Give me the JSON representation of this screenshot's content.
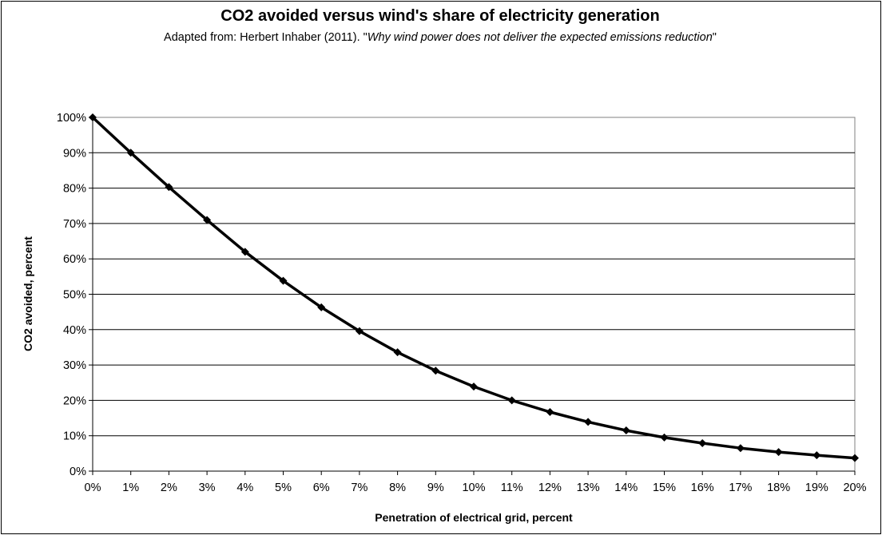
{
  "chart_data": {
    "type": "line",
    "title": "CO2 avoided versus wind's share of electricity generation",
    "subtitle": {
      "prefix": "Adapted from: Herbert Inhaber (2011). \"",
      "work": "Why wind power does not deliver the expected emissions reduction",
      "suffix": "\""
    },
    "xlabel": "Penetration of electrical grid, percent",
    "ylabel": "CO2 avoided, percent",
    "x_tick_labels": [
      "0%",
      "1%",
      "2%",
      "3%",
      "4%",
      "5%",
      "6%",
      "7%",
      "8%",
      "9%",
      "10%",
      "11%",
      "12%",
      "13%",
      "14%",
      "15%",
      "16%",
      "17%",
      "18%",
      "19%",
      "20%"
    ],
    "y_tick_labels": [
      "0%",
      "10%",
      "20%",
      "30%",
      "40%",
      "50%",
      "60%",
      "70%",
      "80%",
      "90%",
      "100%"
    ],
    "x": [
      0,
      1,
      2,
      3,
      4,
      5,
      6,
      7,
      8,
      9,
      10,
      11,
      12,
      13,
      14,
      15,
      16,
      17,
      18,
      19,
      20
    ],
    "xlim": [
      0,
      20
    ],
    "ylim": [
      0,
      100
    ],
    "grid": "horizontal",
    "legend": "none",
    "series": [
      {
        "values": [
          100,
          90,
          80.3,
          71,
          62,
          53.8,
          46.3,
          39.6,
          33.6,
          28.4,
          23.9,
          20,
          16.7,
          13.9,
          11.5,
          9.5,
          7.9,
          6.5,
          5.4,
          4.5,
          3.7
        ],
        "color": "#000000",
        "marker": "diamond"
      }
    ]
  }
}
